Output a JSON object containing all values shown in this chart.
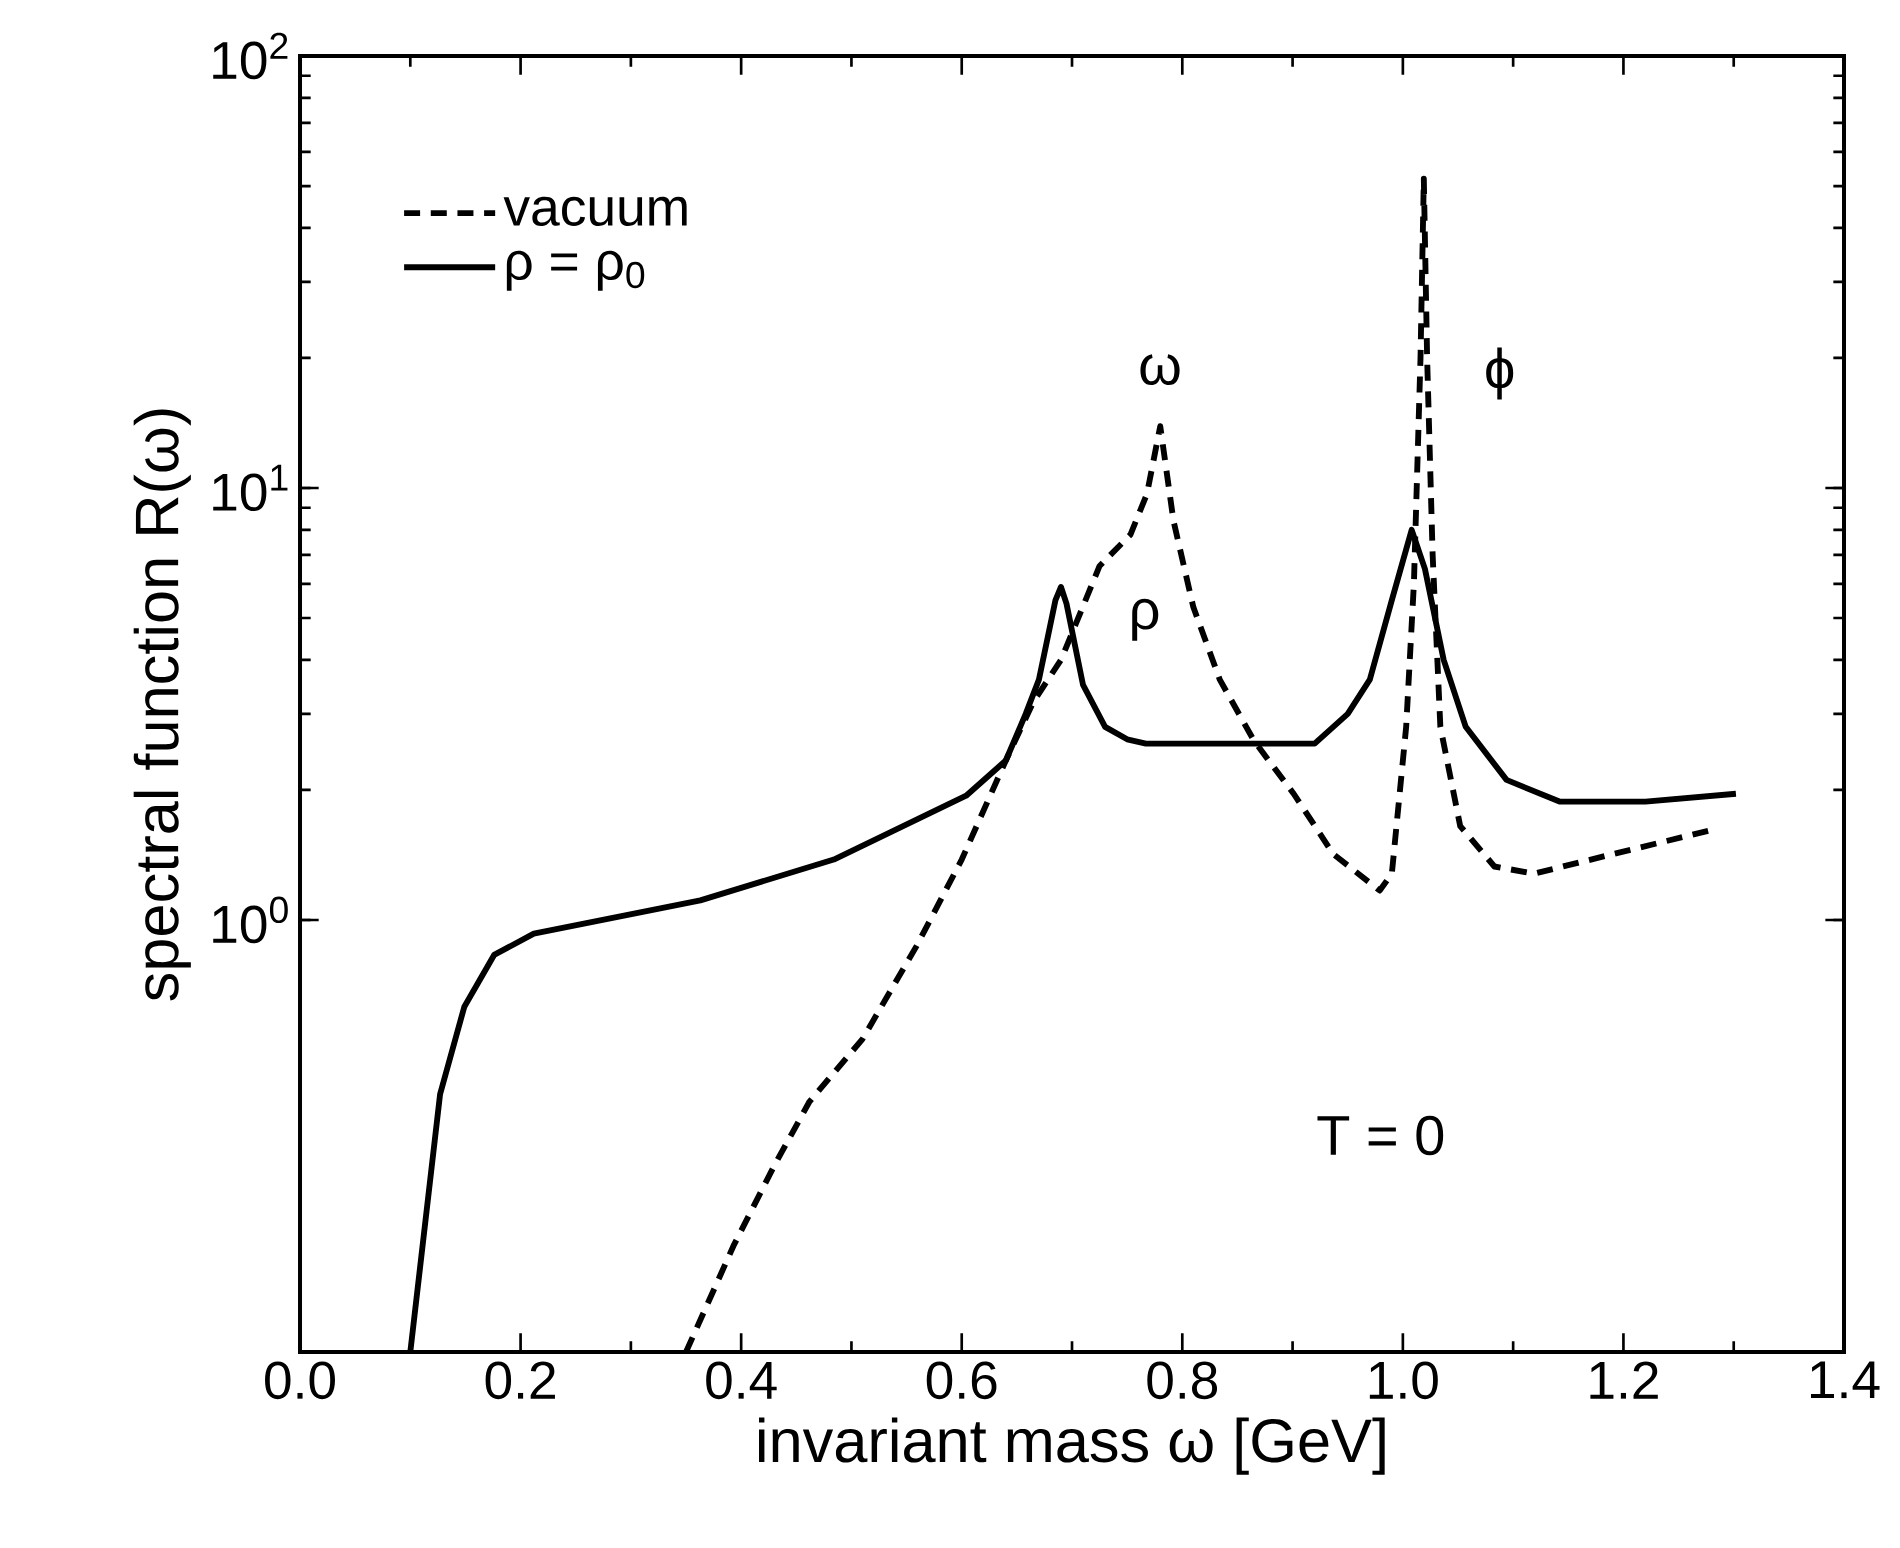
{
  "chart_data": {
    "type": "line",
    "xlabel": "invariant mass ω [GeV]",
    "ylabel": "spectral function R(ω)",
    "xlim": [
      0,
      1.4
    ],
    "ylim": [
      0.1,
      100
    ],
    "log": "y",
    "xticks": [
      {
        "value": 0,
        "label": "0.0"
      },
      {
        "value": 0.2,
        "label": "0.2"
      },
      {
        "value": 0.4,
        "label": "0.4"
      },
      {
        "value": 0.6,
        "label": "0.6"
      },
      {
        "value": 0.8,
        "label": "0.8"
      },
      {
        "value": 1,
        "label": "1.0"
      },
      {
        "value": 1.2,
        "label": "1.2"
      },
      {
        "value": 1.4,
        "label": "1.4"
      }
    ],
    "yticks": [
      {
        "value": 1,
        "label": "10$^{0}$"
      },
      {
        "value": 10,
        "label": "10$^{1}$"
      },
      {
        "value": 100,
        "label": "10$^{2}$"
      }
    ],
    "legend": "top left",
    "grid": false,
    "marker": "none",
    "series": [
      {
        "name": "vacuum",
        "color": "#000000",
        "line_style": "dashed",
        "x": [
          0.35,
          0.393,
          0.43,
          0.462,
          0.51,
          0.559,
          0.6,
          0.64,
          0.665,
          0.69,
          0.707,
          0.725,
          0.753,
          0.768,
          0.78,
          0.792,
          0.81,
          0.834,
          0.865,
          0.901,
          0.937,
          0.979,
          0.99,
          1.003,
          1.01,
          1.016,
          1.019,
          1.022,
          1.027,
          1.034,
          1.052,
          1.083,
          1.119,
          1.19,
          1.282
        ],
        "values": [
          0.1,
          0.176,
          0.27,
          0.38,
          0.53,
          0.87,
          1.38,
          2.34,
          3.2,
          4.0,
          5.1,
          6.6,
          7.8,
          9.7,
          13.9,
          8.4,
          5.3,
          3.6,
          2.6,
          1.96,
          1.42,
          1.17,
          1.28,
          2.8,
          6,
          20,
          52,
          20,
          7,
          2.8,
          1.65,
          1.33,
          1.28,
          1.42,
          1.62
        ]
      },
      {
        "name": "ρ = ρ$_{0}$",
        "color": "#000000",
        "line_style": "solid",
        "x": [
          0.1,
          0.127,
          0.149,
          0.176,
          0.212,
          0.363,
          0.484,
          0.604,
          0.64,
          0.658,
          0.67,
          0.685,
          0.69,
          0.695,
          0.71,
          0.73,
          0.75,
          0.767,
          0.92,
          0.95,
          0.97,
          0.99,
          1.008,
          1.02,
          1.037,
          1.057,
          1.094,
          1.142,
          1.22,
          1.302
        ],
        "values": [
          0.1,
          0.395,
          0.63,
          0.83,
          0.93,
          1.11,
          1.38,
          1.94,
          2.34,
          3.0,
          3.6,
          5.5,
          5.9,
          5.4,
          3.5,
          2.8,
          2.62,
          2.56,
          2.56,
          3.0,
          3.6,
          5.5,
          8.0,
          6.5,
          4.0,
          2.8,
          2.11,
          1.88,
          1.88,
          1.96
        ]
      }
    ],
    "annotations": [
      "ω",
      "ϕ",
      "ρ",
      "T = 0"
    ]
  }
}
